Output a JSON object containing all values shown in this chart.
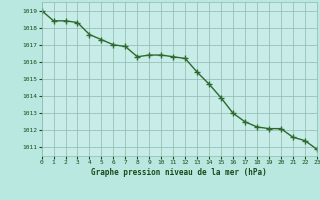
{
  "x": [
    0,
    1,
    2,
    3,
    4,
    5,
    6,
    7,
    8,
    9,
    10,
    11,
    12,
    13,
    14,
    15,
    16,
    17,
    18,
    19,
    20,
    21,
    22,
    23
  ],
  "y": [
    1019.0,
    1018.4,
    1018.4,
    1018.3,
    1017.6,
    1017.3,
    1017.0,
    1016.9,
    1016.3,
    1016.4,
    1016.4,
    1016.3,
    1016.2,
    1015.4,
    1014.7,
    1013.9,
    1013.0,
    1012.5,
    1012.2,
    1012.1,
    1012.1,
    1011.6,
    1011.4,
    1010.9
  ],
  "line_color": "#2d6a2d",
  "marker": "+",
  "bg_color": "#b8e8e0",
  "plot_bg_color": "#c8ece8",
  "grid_color": "#90b8b0",
  "xlabel": "Graphe pression niveau de la mer (hPa)",
  "xlabel_color": "#1a4a1a",
  "tick_color": "#1a4a1a",
  "ylim_min": 1010.5,
  "ylim_max": 1019.5,
  "xlim_min": 0,
  "xlim_max": 23,
  "line_width": 1.0,
  "marker_size": 4,
  "yticks": [
    1011,
    1012,
    1013,
    1014,
    1015,
    1016,
    1017,
    1018,
    1019
  ]
}
